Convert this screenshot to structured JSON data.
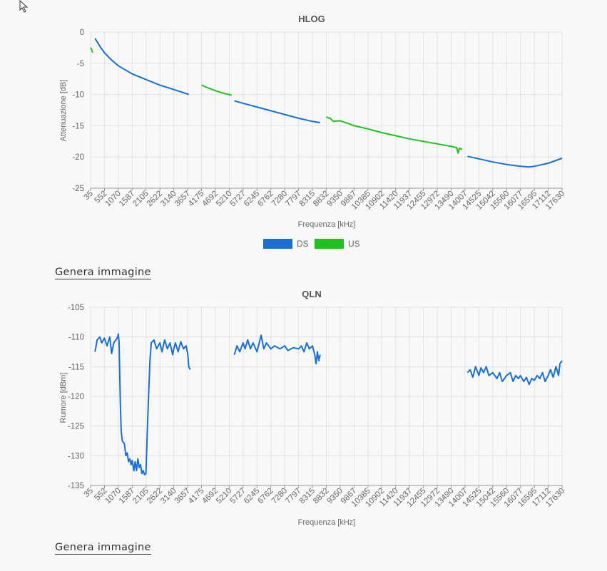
{
  "buttons": {
    "generate_image_1": "Genera immagine",
    "generate_image_2": "Genera immagine"
  },
  "x_ticks": [
    "35",
    "552",
    "1070",
    "1587",
    "2105",
    "2622",
    "3140",
    "3657",
    "4175",
    "4692",
    "5210",
    "5727",
    "6245",
    "6762",
    "7280",
    "7797",
    "8315",
    "8832",
    "9350",
    "9867",
    "10385",
    "10902",
    "11420",
    "11937",
    "12455",
    "12972",
    "13490",
    "14007",
    "14525",
    "15042",
    "15560",
    "16077",
    "16595",
    "17112",
    "17630"
  ],
  "chart_data": [
    {
      "type": "line",
      "title": "HLOG",
      "xlabel": "Frequenza [kHz]",
      "ylabel": "Attenuazione [dB]",
      "xlim": [
        35,
        17630
      ],
      "ylim": [
        -25,
        0
      ],
      "yticks": [
        0,
        -5,
        -10,
        -15,
        -20,
        -25
      ],
      "legend": [
        {
          "name": "DS",
          "color": "#1a6fd1"
        },
        {
          "name": "US",
          "color": "#1fc21f"
        }
      ],
      "series": [
        {
          "name": "US",
          "color": "#1fc21f",
          "segments": [
            [
              [
                35,
                -2.5
              ],
              [
                70,
                -2.7
              ],
              [
                90,
                -3.0
              ],
              [
                110,
                -3.3
              ]
            ],
            [
              [
                4175,
                -8.5
              ],
              [
                4400,
                -8.9
              ],
              [
                4692,
                -9.4
              ],
              [
                5000,
                -9.8
              ],
              [
                5300,
                -10.1
              ]
            ],
            [
              [
                8832,
                -13.6
              ],
              [
                9000,
                -13.9
              ],
              [
                9100,
                -14.3
              ],
              [
                9350,
                -14.2
              ],
              [
                9700,
                -14.7
              ],
              [
                9867,
                -15.0
              ],
              [
                10385,
                -15.5
              ],
              [
                10902,
                -16.1
              ],
              [
                11420,
                -16.6
              ],
              [
                11937,
                -17.1
              ],
              [
                12455,
                -17.5
              ],
              [
                12972,
                -17.9
              ],
              [
                13490,
                -18.3
              ],
              [
                13700,
                -18.5
              ],
              [
                13750,
                -19.4
              ],
              [
                13800,
                -18.6
              ],
              [
                13900,
                -18.8
              ]
            ]
          ]
        },
        {
          "name": "DS",
          "color": "#1a6fd1",
          "segments": [
            [
              [
                200,
                -1.0
              ],
              [
                400,
                -2.4
              ],
              [
                552,
                -3.3
              ],
              [
                800,
                -4.4
              ],
              [
                1070,
                -5.4
              ],
              [
                1587,
                -6.7
              ],
              [
                2105,
                -7.6
              ],
              [
                2622,
                -8.5
              ],
              [
                3140,
                -9.2
              ],
              [
                3500,
                -9.7
              ],
              [
                3700,
                -10.0
              ]
            ],
            [
              [
                5400,
                -11.0
              ],
              [
                5727,
                -11.4
              ],
              [
                6245,
                -12.0
              ],
              [
                6762,
                -12.6
              ],
              [
                7280,
                -13.2
              ],
              [
                7797,
                -13.8
              ],
              [
                8315,
                -14.3
              ],
              [
                8600,
                -14.5
              ]
            ],
            [
              [
                14100,
                -19.9
              ],
              [
                14525,
                -20.3
              ],
              [
                15042,
                -20.8
              ],
              [
                15560,
                -21.2
              ],
              [
                16077,
                -21.5
              ],
              [
                16400,
                -21.6
              ],
              [
                16595,
                -21.5
              ],
              [
                17112,
                -21.0
              ],
              [
                17630,
                -20.2
              ]
            ]
          ]
        }
      ]
    },
    {
      "type": "line",
      "title": "QLN",
      "xlabel": "Frequenza [kHz]",
      "ylabel": "Rumore [dBm]",
      "xlim": [
        35,
        17630
      ],
      "ylim": [
        -135,
        -105
      ],
      "yticks": [
        -105,
        -110,
        -115,
        -120,
        -125,
        -130,
        -135
      ],
      "series": [
        {
          "name": "DS",
          "color": "#1a6fd1",
          "segments": [
            [
              [
                200,
                -112.5
              ],
              [
                280,
                -110.5
              ],
              [
                380,
                -110.0
              ],
              [
                450,
                -111.0
              ],
              [
                552,
                -110.2
              ],
              [
                650,
                -111.5
              ],
              [
                750,
                -110.0
              ],
              [
                820,
                -112.8
              ],
              [
                900,
                -111.0
              ],
              [
                980,
                -110.5
              ],
              [
                1050,
                -110.0
              ],
              [
                1070,
                -109.5
              ],
              [
                1100,
                -111.0
              ],
              [
                1120,
                -116.0
              ],
              [
                1150,
                -122.0
              ],
              [
                1180,
                -126.0
              ],
              [
                1220,
                -127.5
              ],
              [
                1300,
                -128.0
              ],
              [
                1350,
                -130.0
              ],
              [
                1400,
                -129.5
              ],
              [
                1450,
                -131.0
              ],
              [
                1500,
                -130.5
              ],
              [
                1550,
                -131.5
              ],
              [
                1587,
                -130.8
              ],
              [
                1650,
                -132.5
              ],
              [
                1700,
                -131.0
              ],
              [
                1750,
                -132.5
              ],
              [
                1800,
                -130.5
              ],
              [
                1850,
                -132.0
              ],
              [
                1900,
                -131.5
              ],
              [
                1950,
                -133.0
              ],
              [
                2000,
                -132.5
              ],
              [
                2050,
                -133.2
              ],
              [
                2100,
                -133.0
              ],
              [
                2150,
                -126.0
              ],
              [
                2200,
                -120.0
              ],
              [
                2250,
                -114.0
              ],
              [
                2300,
                -111.0
              ],
              [
                2400,
                -110.5
              ],
              [
                2500,
                -112.0
              ],
              [
                2622,
                -111.0
              ],
              [
                2700,
                -112.5
              ],
              [
                2800,
                -110.5
              ],
              [
                2900,
                -112.0
              ],
              [
                3000,
                -111.0
              ],
              [
                3100,
                -113.0
              ],
              [
                3140,
                -112.0
              ],
              [
                3200,
                -111.0
              ],
              [
                3300,
                -112.5
              ],
              [
                3400,
                -110.8
              ],
              [
                3500,
                -112.0
              ],
              [
                3600,
                -111.5
              ],
              [
                3657,
                -112.8
              ],
              [
                3700,
                -115.0
              ],
              [
                3750,
                -115.5
              ]
            ],
            [
              [
                5400,
                -113.0
              ],
              [
                5500,
                -111.5
              ],
              [
                5600,
                -112.5
              ],
              [
                5727,
                -111.0
              ],
              [
                5800,
                -112.0
              ],
              [
                5900,
                -110.5
              ],
              [
                6000,
                -112.0
              ],
              [
                6100,
                -111.0
              ],
              [
                6245,
                -112.5
              ],
              [
                6400,
                -109.7
              ],
              [
                6500,
                -112.0
              ],
              [
                6600,
                -111.0
              ],
              [
                6762,
                -112.0
              ],
              [
                6900,
                -111.5
              ],
              [
                7100,
                -112.0
              ],
              [
                7280,
                -111.5
              ],
              [
                7400,
                -112.3
              ],
              [
                7600,
                -111.8
              ],
              [
                7797,
                -112.0
              ],
              [
                7900,
                -111.5
              ],
              [
                8000,
                -112.5
              ],
              [
                8100,
                -111.0
              ],
              [
                8200,
                -112.0
              ],
              [
                8315,
                -111.5
              ],
              [
                8400,
                -113.0
              ],
              [
                8450,
                -114.5
              ],
              [
                8500,
                -112.5
              ],
              [
                8550,
                -114.0
              ],
              [
                8600,
                -113.0
              ]
            ],
            [
              [
                14100,
                -116.0
              ],
              [
                14200,
                -115.5
              ],
              [
                14300,
                -116.8
              ],
              [
                14400,
                -115.0
              ],
              [
                14525,
                -116.5
              ],
              [
                14600,
                -115.2
              ],
              [
                14700,
                -116.0
              ],
              [
                14800,
                -115.0
              ],
              [
                14900,
                -116.5
              ],
              [
                15042,
                -116.0
              ],
              [
                15200,
                -117.0
              ],
              [
                15300,
                -116.0
              ],
              [
                15400,
                -117.5
              ],
              [
                15560,
                -116.5
              ],
              [
                15700,
                -116.0
              ],
              [
                15800,
                -117.5
              ],
              [
                15900,
                -116.5
              ],
              [
                16000,
                -117.0
              ],
              [
                16077,
                -116.5
              ],
              [
                16200,
                -117.5
              ],
              [
                16300,
                -116.8
              ],
              [
                16400,
                -118.0
              ],
              [
                16500,
                -117.0
              ],
              [
                16595,
                -117.3
              ],
              [
                16700,
                -116.5
              ],
              [
                16800,
                -117.0
              ],
              [
                16900,
                -116.0
              ],
              [
                17000,
                -117.5
              ],
              [
                17112,
                -116.5
              ],
              [
                17200,
                -115.5
              ],
              [
                17300,
                -116.8
              ],
              [
                17400,
                -115.0
              ],
              [
                17500,
                -116.5
              ],
              [
                17550,
                -114.5
              ],
              [
                17630,
                -114.0
              ]
            ]
          ]
        }
      ]
    }
  ]
}
